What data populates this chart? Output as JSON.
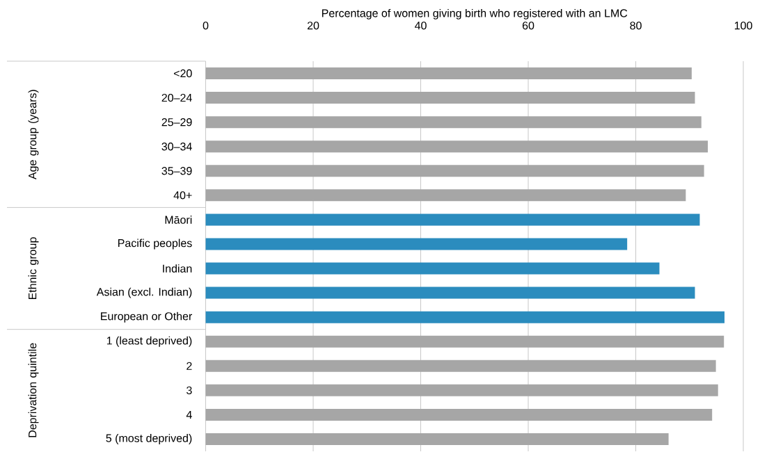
{
  "chart_data": {
    "type": "bar",
    "orientation": "horizontal",
    "xlabel": "Percentage of women giving birth who registered with an LMC",
    "categories": [
      "<20",
      "20–24",
      "25–29",
      "30–34",
      "35–39",
      "40+",
      "Māori",
      "Pacific peoples",
      "Indian",
      "Asian (excl. Indian)",
      "European or Other",
      "1 (least deprived)",
      "2",
      "3",
      "4",
      "5 (most deprived)"
    ],
    "values": [
      90.4,
      91.0,
      92.2,
      93.4,
      92.7,
      89.3,
      91.9,
      78.4,
      84.4,
      91.0,
      96.5,
      96.4,
      94.9,
      95.3,
      94.2,
      86.1
    ],
    "colors": [
      "#a6a6a6",
      "#a6a6a6",
      "#a6a6a6",
      "#a6a6a6",
      "#a6a6a6",
      "#a6a6a6",
      "#2b8cbe",
      "#2b8cbe",
      "#2b8cbe",
      "#2b8cbe",
      "#2b8cbe",
      "#a6a6a6",
      "#a6a6a6",
      "#a6a6a6",
      "#a6a6a6",
      "#a6a6a6"
    ],
    "xlim": [
      0,
      100
    ],
    "xticks": [
      0,
      20,
      40,
      60,
      80,
      100
    ],
    "grid": "x",
    "annotations": [
      "Age group (years)",
      "Ethnic group",
      "Deprivation quintile"
    ]
  }
}
